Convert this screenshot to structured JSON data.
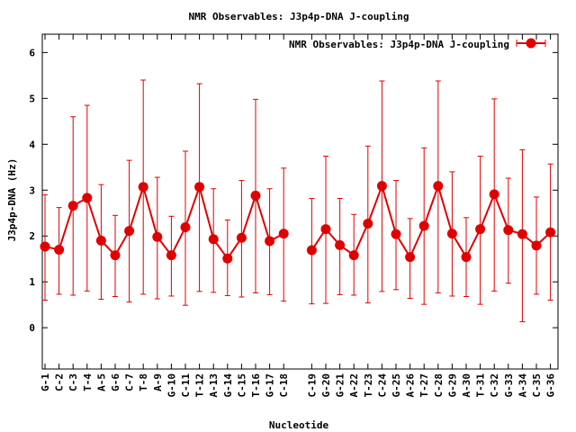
{
  "chart_data": {
    "type": "line",
    "title": "NMR Observables: J3p4p-DNA J-coupling",
    "xlabel": "Nucleotide",
    "ylabel": "J3p4p-DNA (Hz)",
    "ylim": [
      -0.9,
      6.4
    ],
    "yticks": [
      0,
      1,
      2,
      3,
      4,
      5,
      6
    ],
    "grid": false,
    "legend_position": "top-right",
    "color": "#e00000",
    "categories": [
      "G-1",
      "C-2",
      "C-3",
      "T-4",
      "A-5",
      "G-6",
      "C-7",
      "T-8",
      "A-9",
      "G-10",
      "C-11",
      "T-12",
      "A-13",
      "G-14",
      "C-15",
      "T-16",
      "G-17",
      "C-18",
      "C-19",
      "G-20",
      "G-21",
      "A-22",
      "T-23",
      "C-24",
      "G-25",
      "A-26",
      "T-27",
      "C-28",
      "G-29",
      "A-30",
      "T-31",
      "C-32",
      "G-33",
      "A-34",
      "C-35",
      "G-36"
    ],
    "segments": [
      [
        0,
        17
      ],
      [
        18,
        35
      ]
    ],
    "series": [
      {
        "name": "NMR Observables: J3p4p-DNA J-coupling",
        "values": [
          1.77,
          1.7,
          2.66,
          2.83,
          1.9,
          1.58,
          2.11,
          3.07,
          1.98,
          1.58,
          2.19,
          3.07,
          1.93,
          1.51,
          1.96,
          2.88,
          1.89,
          2.05,
          1.69,
          2.15,
          1.8,
          1.58,
          2.27,
          3.09,
          2.04,
          1.54,
          2.22,
          3.09,
          2.05,
          1.54,
          2.15,
          2.91,
          2.13,
          2.04,
          1.79,
          2.08
        ],
        "err_low": [
          0.6,
          0.73,
          0.71,
          0.8,
          0.62,
          0.68,
          0.56,
          0.73,
          0.63,
          0.69,
          0.49,
          0.79,
          0.77,
          0.7,
          0.67,
          0.76,
          0.72,
          0.58,
          0.52,
          0.53,
          0.72,
          0.71,
          0.54,
          0.79,
          0.83,
          0.64,
          0.51,
          0.76,
          0.69,
          0.68,
          0.51,
          0.8,
          0.97,
          0.13,
          0.73,
          0.6
        ],
        "err_high": [
          2.9,
          2.62,
          4.6,
          4.85,
          3.12,
          2.45,
          3.65,
          5.4,
          3.28,
          2.43,
          3.85,
          5.32,
          3.03,
          2.35,
          3.21,
          4.98,
          3.03,
          3.48,
          2.82,
          3.74,
          2.82,
          2.47,
          3.96,
          5.38,
          3.21,
          2.38,
          3.92,
          5.38,
          3.4,
          2.4,
          3.74,
          4.99,
          3.26,
          3.88,
          2.85,
          3.57
        ]
      }
    ]
  }
}
